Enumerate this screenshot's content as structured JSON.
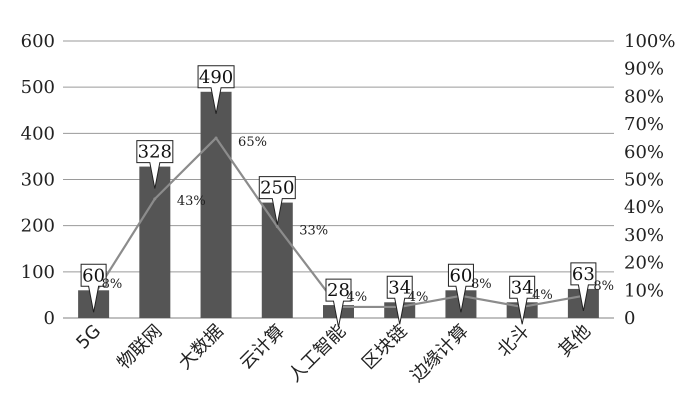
{
  "chart_data": {
    "type": "bar",
    "categories": [
      "5G",
      "物联网",
      "大数据",
      "云计算",
      "人工智能",
      "区块链",
      "边缘计算",
      "北斗",
      "其他"
    ],
    "series": [
      {
        "values": [
          60,
          328,
          490,
          250,
          28,
          34,
          60,
          34,
          63
        ],
        "kind": "bar",
        "axis": "left"
      },
      {
        "values": [
          8,
          43,
          65,
          33,
          4,
          4,
          8,
          4,
          8
        ],
        "kind": "line",
        "axis": "right",
        "unit": "%"
      }
    ],
    "value_labels": [
      "60",
      "328",
      "490",
      "250",
      "28",
      "34",
      "60",
      "34",
      "63"
    ],
    "pct_labels": [
      "8%",
      "43%",
      "65%",
      "33%",
      "4%",
      "4%",
      "8%",
      "4%",
      "8%"
    ],
    "y_left": {
      "range": [
        0,
        600
      ],
      "ticks": [
        "0",
        "100",
        "200",
        "300",
        "400",
        "500",
        "600"
      ]
    },
    "y_right": {
      "range": [
        0,
        100
      ],
      "ticks": [
        "0",
        "10%",
        "20%",
        "30%",
        "40%",
        "50%",
        "60%",
        "70%",
        "80%",
        "90%",
        "100%"
      ]
    },
    "grid": true,
    "legend": "none",
    "colors": {
      "bar": "#555555",
      "line": "#8c8c8c",
      "grid": "#9a9a9a",
      "text": "#222222"
    }
  }
}
